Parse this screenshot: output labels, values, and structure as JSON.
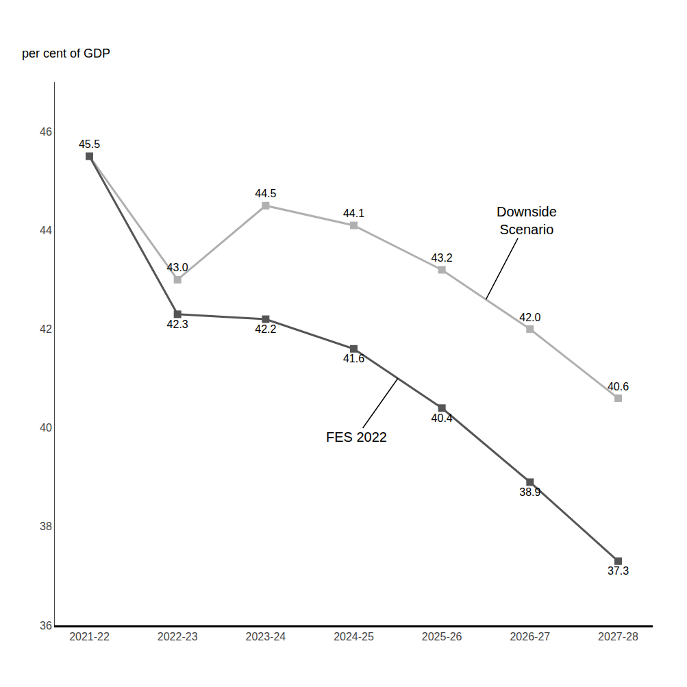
{
  "chart_data": {
    "type": "line",
    "ylabel": "per cent of GDP",
    "categories": [
      "2021-22",
      "2022-23",
      "2023-24",
      "2024-25",
      "2025-26",
      "2026-27",
      "2027-28"
    ],
    "series": [
      {
        "name": "Downside\nScenario",
        "color": "#b0b0b0",
        "marker": "square",
        "values": [
          45.5,
          43.0,
          44.5,
          44.1,
          43.2,
          42.0,
          40.6
        ],
        "value_labels": [
          null,
          "43.0",
          "44.5",
          "44.1",
          "43.2",
          "42.0",
          "40.6"
        ]
      },
      {
        "name": "FES 2022",
        "color": "#555555",
        "marker": "square",
        "values": [
          45.5,
          42.3,
          42.2,
          41.6,
          40.4,
          38.9,
          37.3
        ]
      }
    ],
    "ylim": [
      36,
      47
    ],
    "yticks": [
      36,
      38,
      40,
      42,
      44,
      46
    ],
    "grid": false,
    "data_labels": true
  }
}
